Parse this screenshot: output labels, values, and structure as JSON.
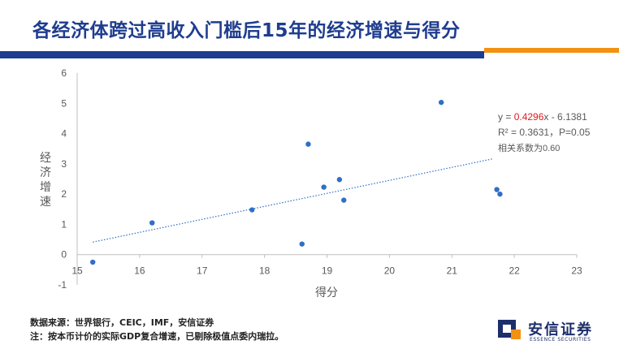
{
  "header": {
    "title": "各经济体跨过高收入门槛后15年的经济增速与得分"
  },
  "chart_data": {
    "type": "scatter",
    "xlabel": "得分",
    "ylabel": "经济增速",
    "xlim": [
      15,
      23
    ],
    "ylim": [
      -1,
      6
    ],
    "x_ticks": [
      "15",
      "16",
      "17",
      "18",
      "19",
      "20",
      "21",
      "22",
      "23"
    ],
    "y_ticks": [
      "6",
      "5",
      "4",
      "3",
      "2",
      "1",
      "0",
      "-1"
    ],
    "grid": false,
    "series": [
      {
        "points": [
          {
            "x": 15.25,
            "y": -0.25
          },
          {
            "x": 16.2,
            "y": 1.05
          },
          {
            "x": 17.8,
            "y": 1.48
          },
          {
            "x": 18.6,
            "y": 0.35
          },
          {
            "x": 18.7,
            "y": 3.65
          },
          {
            "x": 18.95,
            "y": 2.23
          },
          {
            "x": 19.2,
            "y": 2.48
          },
          {
            "x": 19.27,
            "y": 1.8
          },
          {
            "x": 20.83,
            "y": 5.03
          },
          {
            "x": 21.72,
            "y": 2.15
          },
          {
            "x": 21.77,
            "y": 2.0
          }
        ]
      }
    ],
    "trendline": {
      "slope": 0.4296,
      "intercept": -6.1381,
      "x_start": 15.25,
      "x_end": 21.65,
      "style": "dotted",
      "equation_prefix": "y = ",
      "slope_text": "0.4296",
      "equation_suffix": "x - 6.1381",
      "r2_text": "R² = 0.3631，P=0.05",
      "corr_text": "相关系数为0.60"
    },
    "colors": {
      "points": "#2f6fc6",
      "trendline": "#2f6fc6",
      "slope_highlight": "#e0191f",
      "axis": "#bfbfbf",
      "text": "#595959"
    }
  },
  "footer": {
    "source": "数据来源：世界银行，CEIC，IMF，安信证券",
    "note": "注：按本币计价的实际GDP复合增速，已剔除极值点委内瑞拉。"
  },
  "logo": {
    "name": "安信证券",
    "sub": "ESSENCE SECURITIES",
    "colors": {
      "primary": "#1c2f6b",
      "accent": "#f29111"
    }
  }
}
